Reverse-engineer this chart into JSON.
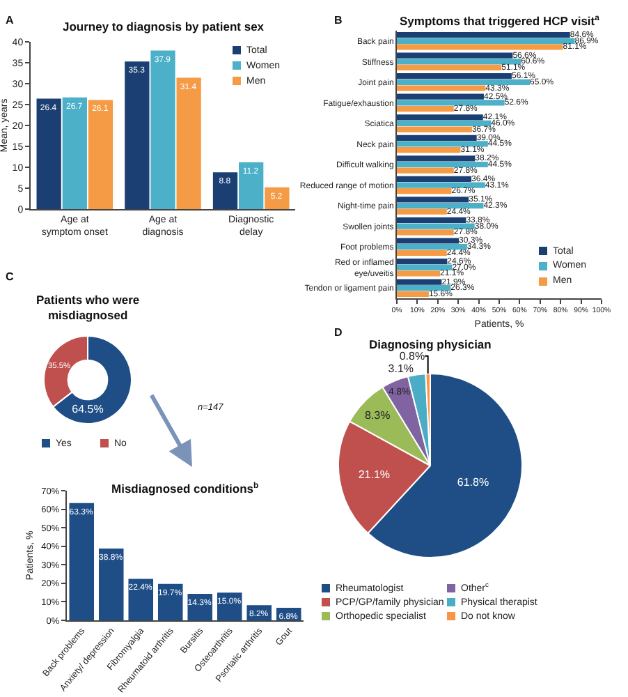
{
  "chart_data": [
    {
      "type": "bar",
      "title": "Journey to diagnosis by patient sex",
      "ylabel": "Mean, years",
      "categories": [
        "Age at symptom onset",
        "Age at diagnosis",
        "Diagnostic delay"
      ],
      "series": [
        {
          "name": "Total",
          "color": "#1b3f72",
          "values": [
            26.4,
            35.3,
            8.8
          ]
        },
        {
          "name": "Women",
          "color": "#4bb0c8",
          "values": [
            26.7,
            37.9,
            11.2
          ]
        },
        {
          "name": "Men",
          "color": "#f59a45",
          "values": [
            26.1,
            31.4,
            5.2
          ]
        }
      ],
      "ylim": [
        0,
        40
      ],
      "yticks": [
        0,
        5,
        10,
        15,
        20,
        25,
        30,
        35,
        40
      ],
      "data_labels": true,
      "legend": "top right",
      "annotations": [
        "A"
      ]
    },
    {
      "type": "bar",
      "orientation": "horizontal",
      "title": "Symptoms that triggered HCP visit$^{a}$",
      "xlabel": "Patients, %",
      "categories": [
        "Back pain",
        "Stiffness",
        "Joint pain",
        "Fatigue/exhaustion",
        "Sciatica",
        "Neck pain",
        "Difficult walking",
        "Reduced range of motion",
        "Night-time pain",
        "Swollen joints",
        "Foot problems",
        "Red or inflamed eye/uveitis",
        "Tendon or ligament pain"
      ],
      "series": [
        {
          "name": "Total",
          "color": "#1b3f72",
          "values": [
            84.6,
            56.6,
            56.1,
            42.5,
            42.1,
            39.0,
            38.2,
            36.4,
            35.1,
            33.8,
            30.3,
            24.6,
            21.9
          ],
          "value_labels": [
            "84.6%",
            "56.6%",
            "56.1%",
            "42.5%",
            "42.1%",
            "39.0%",
            "38.2%",
            "36.4%",
            "35.1%",
            "33.8%",
            "30.3%",
            "24.6%",
            "21.9%"
          ]
        },
        {
          "name": "Women",
          "color": "#4bb0c8",
          "values": [
            86.9,
            60.6,
            65.0,
            52.6,
            46.0,
            44.5,
            44.5,
            43.1,
            42.3,
            38.0,
            34.3,
            27.0,
            26.3
          ],
          "value_labels": [
            "86.9%",
            "60.6%",
            "65.0%",
            "52.6%",
            "46.0%",
            "44.5%",
            "44.5%",
            "43.1%",
            "42.3%",
            "38.0%",
            "34.3%",
            "27.0%",
            "26.3%"
          ]
        },
        {
          "name": "Men",
          "color": "#f59a45",
          "values": [
            81.1,
            51.1,
            43.3,
            27.8,
            36.7,
            31.1,
            27.8,
            26.7,
            24.4,
            27.8,
            24.4,
            21.1,
            15.6
          ],
          "value_labels": [
            "81.1%",
            "51.1%",
            "43.3%",
            "27.8%",
            "36.7%",
            "31.1%",
            "27.8%",
            "26.7%",
            "24.4%",
            "27.8%",
            "24.4%",
            "21.1%",
            "15.6%"
          ]
        }
      ],
      "xlim": [
        0,
        100
      ],
      "xticks": [
        {
          "value": 0,
          "label": "0%"
        },
        {
          "value": 10,
          "label": "10%"
        },
        {
          "value": 20,
          "label": "20%"
        },
        {
          "value": 30,
          "label": "30%"
        },
        {
          "value": 40,
          "label": "40%"
        },
        {
          "value": 50,
          "label": "50%"
        },
        {
          "value": 60,
          "label": "60%"
        },
        {
          "value": 70,
          "label": "70%"
        },
        {
          "value": 80,
          "label": "80%"
        },
        {
          "value": 90,
          "label": "90%"
        },
        {
          "value": 100,
          "label": "100%"
        }
      ],
      "legend": "bottom right",
      "annotations": [
        "B"
      ]
    },
    {
      "type": "donut",
      "title": "Patients who were misdiagnosed",
      "categories": [
        "Yes",
        "No"
      ],
      "values": [
        64.5,
        35.5
      ],
      "colors": [
        "#1f4e87",
        "#c0504d"
      ],
      "value_labels": [
        "64.5%",
        "35.5%"
      ],
      "legend": "bottom",
      "annotations": [
        "C",
        "n=147"
      ]
    },
    {
      "type": "bar",
      "title": "Misdiagnosed conditions$^{b}$",
      "ylabel": "Patients, %",
      "categories": [
        "Back problems",
        "Anxiety/ depression",
        "Fibromyalgia",
        "Rheumatoid arthritis",
        "Bursitis",
        "Osteoarthritis",
        "Psoriatic arthritis",
        "Gout"
      ],
      "values": [
        63.3,
        38.8,
        22.4,
        19.7,
        14.3,
        15.0,
        8.2,
        6.8
      ],
      "color": "#1f4e87",
      "value_labels": [
        "63.3%",
        "38.8%",
        "22.4%",
        "19.7%",
        "14.3%",
        "15.0%",
        "8.2%",
        "6.8%"
      ],
      "ylim": [
        0,
        70
      ],
      "yticks": [
        {
          "value": 0,
          "label": "0%"
        },
        {
          "value": 10,
          "label": "10%"
        },
        {
          "value": 20,
          "label": "20%"
        },
        {
          "value": 30,
          "label": "30%"
        },
        {
          "value": 40,
          "label": "40%"
        },
        {
          "value": 50,
          "label": "50%"
        },
        {
          "value": 60,
          "label": "60%"
        },
        {
          "value": 70,
          "label": "70%"
        }
      ]
    },
    {
      "type": "pie",
      "title": "Diagnosing physician",
      "categories": [
        "Rheumatologist",
        "PCP/GP/family physician",
        "Orthopedic specialist",
        "Other$^{c}$",
        "Physical therapist",
        "Do not know"
      ],
      "values": [
        61.8,
        21.1,
        8.3,
        4.8,
        3.1,
        0.8
      ],
      "colors": [
        "#1f4e87",
        "#c0504d",
        "#9bbb59",
        "#8064a2",
        "#4bacc6",
        "#f79646"
      ],
      "value_labels": [
        "61.8%",
        "21.1%",
        "8.3%",
        "4.8%",
        "3.1%",
        "0.8%"
      ],
      "legend": "bottom",
      "annotations": [
        "D"
      ]
    }
  ]
}
